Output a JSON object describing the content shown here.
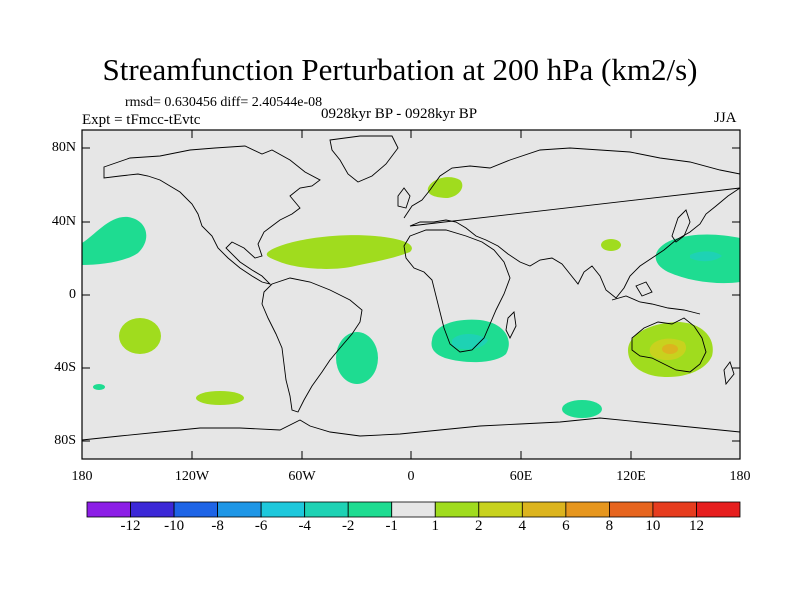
{
  "title": "Streamfunction Perturbation at 200 hPa (km2/s)",
  "stats": "rmsd= 0.630456 diff= 2.40544e-08",
  "experiment": "Expt = tFmcc-tEvtc",
  "period": "0928kyr BP - 0928kyr BP",
  "season": "JJA",
  "lat_labels": [
    "80N",
    "40N",
    "0",
    "40S",
    "80S"
  ],
  "lon_labels": [
    "180",
    "120W",
    "60W",
    "0",
    "60E",
    "120E",
    "180"
  ],
  "colorbar": {
    "labels": [
      "-12",
      "-10",
      "-8",
      "-6",
      "-4",
      "-2",
      "-1",
      "1",
      "2",
      "4",
      "6",
      "8",
      "10",
      "12"
    ],
    "colors": [
      "#8c1ee6",
      "#3c28d7",
      "#1e64e6",
      "#1e96e6",
      "#1ec8dc",
      "#1ed2b4",
      "#1edc91",
      "#e6e6e6",
      "#a0dc1e",
      "#c8d21e",
      "#dcb41e",
      "#e6961e",
      "#e6641e",
      "#e63c1e",
      "#e61e1e"
    ]
  },
  "map_colors": {
    "ocean": "#e6e6e6",
    "neg_light": "#1edc91",
    "neg_mid": "#1ed2b4",
    "pos_light": "#a0dc1e",
    "pos_mid": "#c8d21e",
    "pos_high": "#dcb41e",
    "coast": "#000000"
  }
}
